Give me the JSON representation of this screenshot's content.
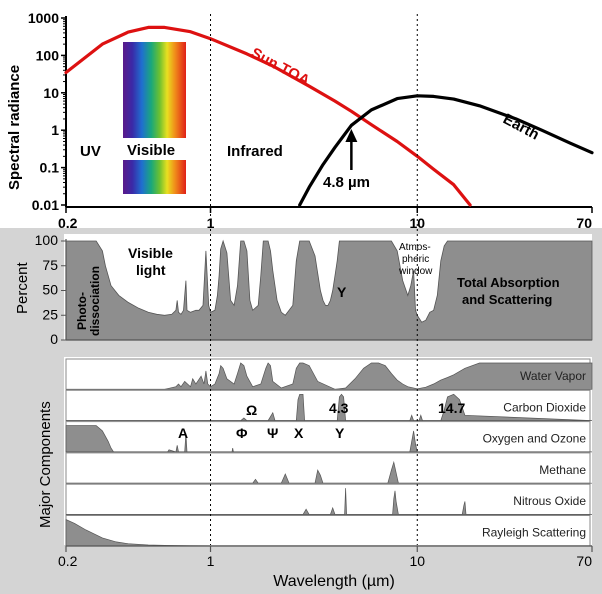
{
  "chart_data": [
    {
      "type": "line",
      "title": "",
      "ylabel": "Spectral radiance",
      "xscale": "log",
      "yscale": "log",
      "xlim": [
        0.2,
        70
      ],
      "ylim": [
        0.01,
        1000
      ],
      "x_ticks": [
        "0.2",
        "1",
        "10",
        "70"
      ],
      "y_ticks": [
        "1000",
        "100",
        "10",
        "1",
        "0.1",
        "0.01"
      ],
      "series": [
        {
          "name": "Sun TOA",
          "color": "#dd1111",
          "x": [
            0.2,
            0.3,
            0.4,
            0.5,
            0.6,
            0.8,
            1,
            1.5,
            2,
            3,
            4,
            4.8,
            6,
            8,
            10,
            12,
            15,
            18
          ],
          "y": [
            35,
            200,
            420,
            560,
            560,
            430,
            280,
            110,
            52,
            15,
            6,
            3.2,
            1.4,
            0.5,
            0.2,
            0.09,
            0.035,
            0.01
          ]
        },
        {
          "name": "Earth",
          "color": "#000000",
          "x": [
            2.7,
            3,
            3.5,
            4,
            4.8,
            6,
            8,
            10,
            12,
            15,
            20,
            30,
            40,
            55,
            70
          ],
          "y": [
            0.01,
            0.03,
            0.12,
            0.35,
            1.35,
            3.5,
            7,
            8.3,
            8,
            6.8,
            4.5,
            2,
            1,
            0.45,
            0.25
          ]
        }
      ],
      "annotations": {
        "uv": "UV",
        "visible": "Visible",
        "infrared": "Infrared",
        "crossover": "4.8 µm"
      }
    },
    {
      "type": "area",
      "ylabel": "Percent",
      "ylim": [
        0,
        100
      ],
      "y_ticks": [
        "100",
        "75",
        "50",
        "25",
        "0"
      ],
      "series_name": "Total Absorption and Scattering",
      "x": [
        0.2,
        0.22,
        0.25,
        0.28,
        0.3,
        0.31,
        0.33,
        0.36,
        0.4,
        0.45,
        0.5,
        0.55,
        0.6,
        0.65,
        0.68,
        0.69,
        0.7,
        0.72,
        0.74,
        0.76,
        0.77,
        0.8,
        0.85,
        0.88,
        0.92,
        0.95,
        0.98,
        1.0,
        1.05,
        1.08,
        1.1,
        1.12,
        1.15,
        1.2,
        1.25,
        1.3,
        1.35,
        1.4,
        1.45,
        1.5,
        1.55,
        1.6,
        1.7,
        1.75,
        1.8,
        1.85,
        1.9,
        1.95,
        2.0,
        2.1,
        2.2,
        2.3,
        2.4,
        2.5,
        2.6,
        2.7,
        2.8,
        3.0,
        3.2,
        3.4,
        3.5,
        3.6,
        3.7,
        3.8,
        3.9,
        4.0,
        4.1,
        4.2,
        4.3,
        4.5,
        4.7,
        4.8,
        4.9,
        5.0,
        5.2,
        5.5,
        6.0,
        6.5,
        7.0,
        7.5,
        8.0,
        8.5,
        9.0,
        9.3,
        9.6,
        9.8,
        10.0,
        10.5,
        11.0,
        11.5,
        12.0,
        12.5,
        13.0,
        13.5,
        14.0,
        14.5,
        15.0,
        16,
        18,
        20,
        25,
        30,
        40,
        50,
        60,
        70
      ],
      "y": [
        100,
        100,
        100,
        100,
        90,
        75,
        55,
        45,
        38,
        32,
        28,
        26,
        25,
        26,
        30,
        40,
        28,
        26,
        30,
        60,
        30,
        28,
        30,
        30,
        35,
        90,
        35,
        28,
        30,
        45,
        65,
        92,
        100,
        88,
        40,
        35,
        55,
        100,
        100,
        90,
        40,
        30,
        35,
        65,
        100,
        100,
        100,
        90,
        70,
        40,
        28,
        25,
        30,
        35,
        80,
        100,
        100,
        100,
        85,
        50,
        40,
        35,
        35,
        40,
        50,
        65,
        80,
        100,
        100,
        100,
        100,
        100,
        100,
        100,
        100,
        100,
        100,
        100,
        100,
        100,
        90,
        60,
        45,
        55,
        70,
        30,
        25,
        18,
        20,
        28,
        30,
        45,
        80,
        95,
        100,
        100,
        100,
        100,
        100,
        100,
        100,
        100,
        100,
        100,
        100,
        100
      ],
      "annotations": {
        "photodissociation": [
          "Photo-",
          "dissociation"
        ],
        "visible_light": [
          "Visible",
          "light"
        ],
        "window": [
          "Atmos-",
          "pheric",
          "window"
        ],
        "total": [
          "Total Absorption",
          "and Scattering"
        ],
        "upsilon": "Υ"
      }
    },
    {
      "type": "area",
      "ylabel": "Major Components",
      "xlabel": "Wavelength (µm)",
      "x_ticks": [
        "0.2",
        "1",
        "10",
        "70"
      ],
      "bands": [
        {
          "name": "Water Vapor",
          "x": [
            0.2,
            0.6,
            0.68,
            0.7,
            0.72,
            0.75,
            0.8,
            0.82,
            0.85,
            0.9,
            0.93,
            0.95,
            0.97,
            1.0,
            1.05,
            1.1,
            1.12,
            1.15,
            1.2,
            1.3,
            1.35,
            1.4,
            1.45,
            1.5,
            1.6,
            1.75,
            1.85,
            1.9,
            1.95,
            2.0,
            2.2,
            2.5,
            2.6,
            2.7,
            2.8,
            3.0,
            3.3,
            4.0,
            4.5,
            5.0,
            5.5,
            6.0,
            6.5,
            7.0,
            7.5,
            8.0,
            8.5,
            9.0,
            10.0,
            11.0,
            12.0,
            13.0,
            14.0,
            15.0,
            17.0,
            20.0,
            30.0,
            70.0
          ],
          "y": [
            0,
            0,
            0.1,
            0.2,
            0.1,
            0.3,
            0.1,
            0.4,
            0.2,
            0.5,
            0.2,
            0.7,
            0.2,
            0.1,
            0.2,
            0.6,
            0.9,
            0.8,
            0.4,
            0.2,
            0.6,
            1.0,
            0.9,
            0.5,
            0.1,
            0.2,
            0.8,
            1.0,
            0.9,
            0.3,
            0.05,
            0.2,
            0.8,
            1.0,
            1.0,
            0.9,
            0.3,
            0.0,
            0.05,
            0.4,
            0.8,
            1.0,
            1.0,
            0.9,
            0.6,
            0.35,
            0.2,
            0.1,
            0.02,
            0.08,
            0.2,
            0.35,
            0.45,
            0.55,
            0.8,
            1.0,
            1.0,
            1.0
          ]
        },
        {
          "name": "Carbon Dioxide",
          "x": [
            0.2,
            1.4,
            1.45,
            1.5,
            1.9,
            2.0,
            2.05,
            2.6,
            2.65,
            2.7,
            2.8,
            2.85,
            4.1,
            4.2,
            4.3,
            4.4,
            4.5,
            9.2,
            9.4,
            9.6,
            10.2,
            10.4,
            10.6,
            13.0,
            13.5,
            14.0,
            15.0,
            16.0,
            17.0,
            70.0
          ],
          "y": [
            0,
            0,
            0.1,
            0,
            0,
            0.3,
            0,
            0,
            0.8,
            1.0,
            1.0,
            0,
            0,
            0.9,
            1.0,
            0.9,
            0,
            0,
            0.2,
            0,
            0,
            0.2,
            0,
            0,
            0.4,
            0.9,
            1.0,
            0.8,
            0.2,
            0
          ],
          "labels": [
            "Ω",
            "4.3",
            "14.7"
          ]
        },
        {
          "name": "Oxygen and Ozone",
          "x": [
            0.2,
            0.22,
            0.25,
            0.28,
            0.3,
            0.32,
            0.33,
            0.34,
            0.62,
            0.63,
            0.68,
            0.69,
            0.7,
            0.75,
            0.76,
            0.77,
            1.27,
            1.28,
            1.29,
            9.2,
            9.4,
            9.6,
            9.8,
            10.0,
            70.0
          ],
          "y": [
            1.0,
            1.0,
            1.0,
            1.0,
            0.8,
            0.4,
            0.15,
            0,
            0,
            0.08,
            0,
            0.25,
            0,
            0,
            0.7,
            0,
            0,
            0.15,
            0,
            0,
            0.4,
            0.8,
            0.3,
            0,
            0
          ],
          "labels": [
            "A",
            "Φ",
            "Ψ",
            "X",
            "Υ"
          ]
        },
        {
          "name": "Methane",
          "x": [
            0.2,
            1.6,
            1.65,
            1.7,
            2.2,
            2.3,
            2.4,
            3.2,
            3.3,
            3.4,
            3.5,
            7.2,
            7.5,
            7.7,
            7.9,
            8.1,
            70.0
          ],
          "y": [
            0,
            0,
            0.15,
            0,
            0,
            0.35,
            0,
            0,
            0.5,
            0.3,
            0,
            0,
            0.5,
            0.8,
            0.4,
            0,
            0
          ]
        },
        {
          "name": "Nitrous Oxide",
          "x": [
            0.2,
            2.8,
            2.9,
            3.0,
            3.8,
            3.9,
            4.0,
            4.45,
            4.5,
            4.55,
            7.6,
            7.7,
            7.8,
            7.9,
            8.1,
            16.5,
            16.8,
            17.0,
            17.2,
            70.0
          ],
          "y": [
            0,
            0,
            0.2,
            0,
            0,
            0.25,
            0,
            0,
            1.0,
            0,
            0,
            0.6,
            0.9,
            0.5,
            0,
            0,
            0.35,
            0.5,
            0,
            0
          ]
        },
        {
          "name": "Rayleigh Scattering",
          "x": [
            0.2,
            0.22,
            0.25,
            0.3,
            0.35,
            0.4,
            0.5,
            0.6,
            0.8,
            1.0,
            70.0
          ],
          "y": [
            1.0,
            0.85,
            0.6,
            0.3,
            0.15,
            0.08,
            0.03,
            0.015,
            0.005,
            0,
            0
          ]
        }
      ]
    }
  ]
}
